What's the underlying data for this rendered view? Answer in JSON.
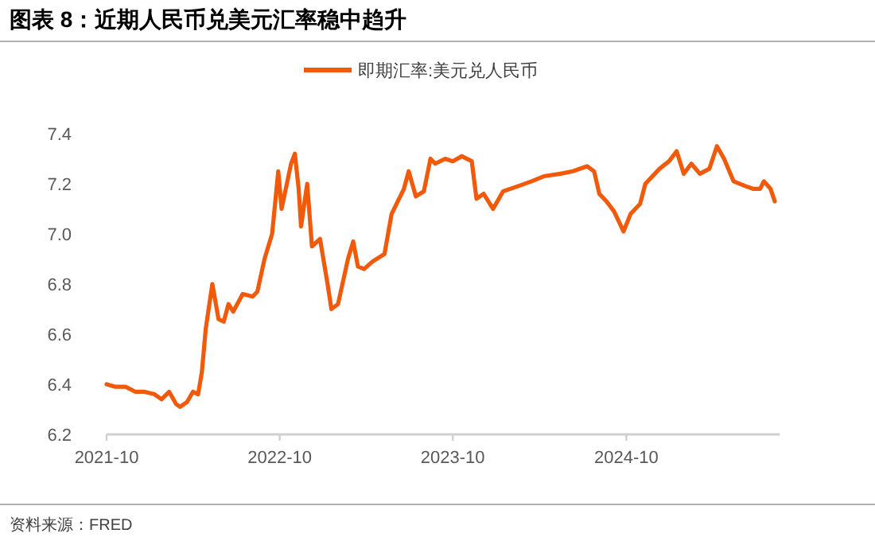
{
  "chart_data": {
    "type": "line",
    "title": "图表 8：近期人民币兑美元汇率稳中趋升",
    "annotations": [
      "资料来源：FRED"
    ],
    "xlim": [
      "2021-10-01",
      "2025-08-20"
    ],
    "xticks": [
      "2021-10",
      "2022-10",
      "2023-10",
      "2024-10"
    ],
    "ylim": [
      6.2,
      7.4
    ],
    "yticks": [
      6.2,
      6.4,
      6.6,
      6.8,
      {
        "value": 7,
        "label": "7.0"
      },
      7.2,
      7.4
    ],
    "legend": "top",
    "grid": false,
    "series": [
      {
        "name": "即期汇率:美元兑人民币",
        "color": "#f05a0a",
        "x": [
          "2021-10-01",
          "2021-10-20",
          "2021-11-10",
          "2021-12-01",
          "2021-12-20",
          "2022-01-10",
          "2022-01-25",
          "2022-02-10",
          "2022-02-25",
          "2022-03-05",
          "2022-03-20",
          "2022-04-01",
          "2022-04-12",
          "2022-04-20",
          "2022-04-28",
          "2022-05-12",
          "2022-05-25",
          "2022-06-05",
          "2022-06-15",
          "2022-06-25",
          "2022-07-15",
          "2022-08-05",
          "2022-08-15",
          "2022-08-30",
          "2022-09-15",
          "2022-09-28",
          "2022-10-05",
          "2022-10-25",
          "2022-11-02",
          "2022-11-10",
          "2022-11-15",
          "2022-11-28",
          "2022-12-08",
          "2022-12-25",
          "2023-01-10",
          "2023-01-18",
          "2023-02-01",
          "2023-02-22",
          "2023-03-05",
          "2023-03-15",
          "2023-03-28",
          "2023-04-15",
          "2023-05-10",
          "2023-05-25",
          "2023-06-20",
          "2023-06-30",
          "2023-07-15",
          "2023-08-01",
          "2023-08-15",
          "2023-08-25",
          "2023-09-15",
          "2023-10-01",
          "2023-10-20",
          "2023-11-10",
          "2023-11-20",
          "2023-12-05",
          "2023-12-25",
          "2024-01-15",
          "2024-02-15",
          "2024-03-15",
          "2024-04-10",
          "2024-05-15",
          "2024-06-10",
          "2024-07-10",
          "2024-07-25",
          "2024-08-05",
          "2024-08-20",
          "2024-09-05",
          "2024-09-25",
          "2024-10-10",
          "2024-10-30",
          "2024-11-10",
          "2024-12-10",
          "2024-12-30",
          "2025-01-15",
          "2025-01-30",
          "2025-02-15",
          "2025-03-05",
          "2025-03-25",
          "2025-04-10",
          "2025-04-25",
          "2025-05-15",
          "2025-06-10",
          "2025-06-25",
          "2025-07-10",
          "2025-07-18",
          "2025-08-01",
          "2025-08-10"
        ],
        "values": [
          6.4,
          6.39,
          6.39,
          6.37,
          6.37,
          6.36,
          6.34,
          6.37,
          6.32,
          6.31,
          6.33,
          6.37,
          6.36,
          6.45,
          6.62,
          6.8,
          6.66,
          6.65,
          6.72,
          6.69,
          6.76,
          6.75,
          6.77,
          6.9,
          7.0,
          7.25,
          7.1,
          7.28,
          7.32,
          7.18,
          7.03,
          7.2,
          6.95,
          6.98,
          6.8,
          6.7,
          6.72,
          6.9,
          6.97,
          6.87,
          6.86,
          6.89,
          6.92,
          7.08,
          7.18,
          7.25,
          7.15,
          7.17,
          7.3,
          7.28,
          7.3,
          7.29,
          7.31,
          7.29,
          7.14,
          7.16,
          7.1,
          7.17,
          7.19,
          7.21,
          7.23,
          7.24,
          7.25,
          7.27,
          7.25,
          7.16,
          7.13,
          7.09,
          7.01,
          7.08,
          7.12,
          7.2,
          7.26,
          7.29,
          7.33,
          7.24,
          7.28,
          7.24,
          7.26,
          7.35,
          7.3,
          7.21,
          7.19,
          7.18,
          7.18,
          7.21,
          7.18,
          7.13
        ]
      }
    ]
  }
}
